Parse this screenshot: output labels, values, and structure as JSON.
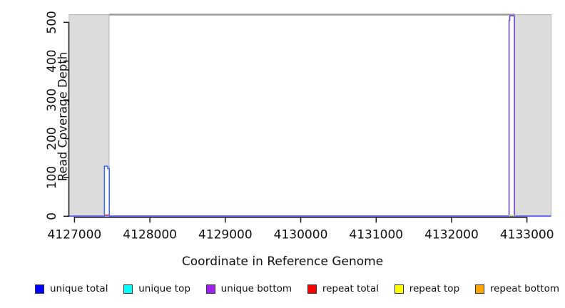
{
  "figure": {
    "title": "",
    "background": "#ffffff"
  },
  "legend": {
    "items": [
      {
        "label": "unique total",
        "color": "#0000ff"
      },
      {
        "label": "unique top",
        "color": "#00ffff"
      },
      {
        "label": "unique bottom",
        "color": "#a020f0"
      },
      {
        "label": "repeat total",
        "color": "#ff0000"
      },
      {
        "label": "repeat top",
        "color": "#ffff00"
      },
      {
        "label": "repeat bottom",
        "color": "#ffa500"
      }
    ]
  },
  "chart_data": {
    "type": "area",
    "title": "",
    "xlabel": "Coordinate in Reference Genome",
    "ylabel": "Read Coverage Depth",
    "xlim": [
      4126930,
      4133320
    ],
    "ylim": [
      0,
      520
    ],
    "x_ticks": [
      4127000,
      4128000,
      4129000,
      4130000,
      4131000,
      4132000,
      4133000
    ],
    "y_ticks": [
      0,
      100,
      200,
      300,
      400,
      500
    ],
    "grid": false,
    "legend_position": "bottom",
    "colors": {
      "shaded_region_fill": "#dcdcdc",
      "shaded_region_border": "#b3b3b3",
      "boundary_line": "#9a9a9a",
      "axis": "#1a1a1a"
    },
    "shaded_regions": [
      {
        "x0": 4126930,
        "x1": 4127460
      },
      {
        "x0": 4132838,
        "x1": 4133320
      }
    ],
    "boundary_line_y": 520,
    "series": [
      {
        "name": "unique total spike",
        "color": "#3e6cf2",
        "fill": "#ffffff",
        "points": [
          [
            4126930,
            0
          ],
          [
            4127397,
            129
          ],
          [
            4127440,
            123
          ],
          [
            4127462,
            0
          ],
          [
            4133320,
            0
          ]
        ]
      },
      {
        "name": "repeat total base segment",
        "color": "#ef4136",
        "fill": null,
        "points": [
          [
            4127399,
            0
          ],
          [
            4127399,
            3
          ],
          [
            4127460,
            3
          ],
          [
            4127460,
            0
          ]
        ]
      },
      {
        "name": "unique bottom spike",
        "color": "#6a46d9",
        "fill": "#ffffff",
        "points": [
          [
            4132763,
            0
          ],
          [
            4132763,
            505
          ],
          [
            4132771,
            505
          ],
          [
            4132771,
            517
          ],
          [
            4132833,
            517
          ],
          [
            4132833,
            0
          ]
        ]
      },
      {
        "name": "unique bottom baseline",
        "color": "#7d6cea",
        "fill": null,
        "points": [
          [
            4126930,
            1
          ],
          [
            4133320,
            1
          ]
        ]
      },
      {
        "name": "repeat top base segment",
        "color": "#d6de52",
        "fill": null,
        "points": [
          [
            4132771,
            0
          ],
          [
            4132771,
            2
          ],
          [
            4132829,
            2
          ],
          [
            4132829,
            0
          ]
        ]
      }
    ]
  }
}
